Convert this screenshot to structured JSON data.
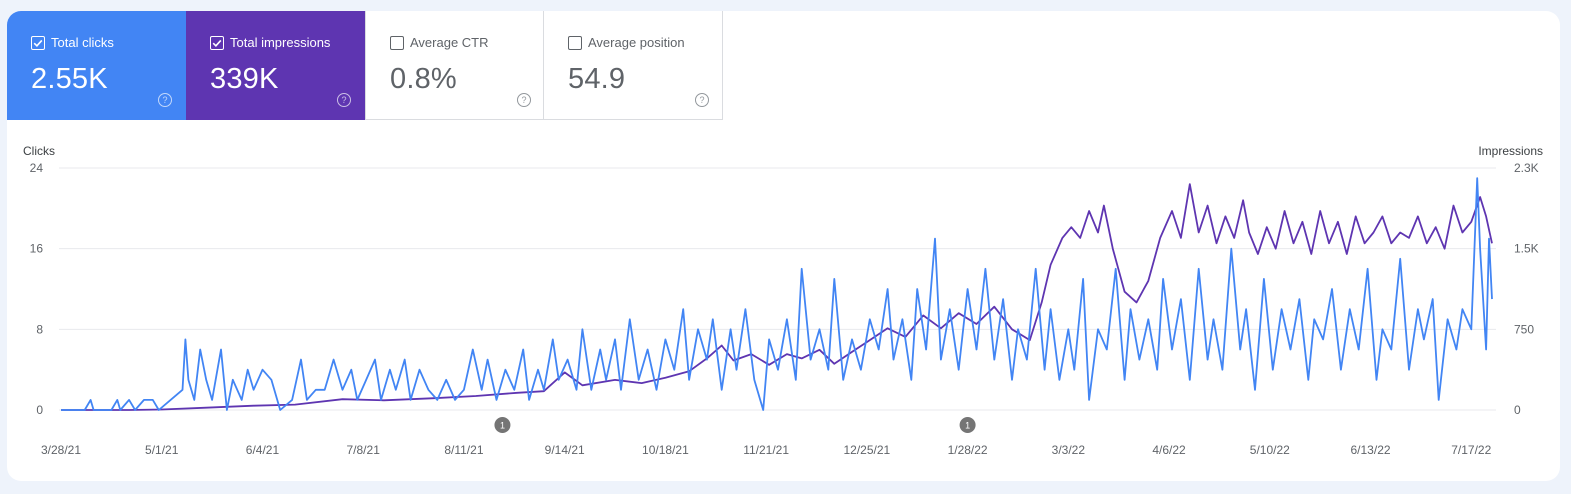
{
  "metrics": {
    "clicks": {
      "label": "Total clicks",
      "value": "2.55K",
      "checked": true,
      "help_icon": "?"
    },
    "impressions": {
      "label": "Total impressions",
      "value": "339K",
      "checked": true,
      "help_icon": "?"
    },
    "ctr": {
      "label": "Average CTR",
      "value": "0.8%",
      "checked": false,
      "help_icon": "?"
    },
    "position": {
      "label": "Average position",
      "value": "54.9",
      "checked": false,
      "help_icon": "?"
    }
  },
  "colors": {
    "clicks": "#4285f4",
    "impressions": "#5e35b1",
    "grid": "#e8eaed"
  },
  "chart_data": {
    "type": "line",
    "x_start": "2021-03-28",
    "x_end": "2022-07-24",
    "left_axis": {
      "label": "Clicks",
      "ticks": [
        "0",
        "8",
        "16",
        "24"
      ],
      "range": [
        0,
        24
      ]
    },
    "right_axis": {
      "label": "Impressions",
      "ticks": [
        "0",
        "750",
        "1.5K",
        "2.3K"
      ],
      "range": [
        0,
        2250
      ]
    },
    "x_tick_labels": [
      "3/28/21",
      "5/1/21",
      "6/4/21",
      "7/8/21",
      "8/11/21",
      "9/14/21",
      "10/18/21",
      "11/21/21",
      "12/25/21",
      "1/28/22",
      "3/3/22",
      "4/6/22",
      "5/10/22",
      "6/13/22",
      "7/17/22"
    ],
    "annotations": [
      {
        "date": "2021-08-24",
        "label": "1"
      },
      {
        "date": "2022-01-28",
        "label": "1"
      }
    ],
    "grid": true,
    "series": [
      {
        "name": "Clicks",
        "axis": "left",
        "points": [
          [
            "2021-03-28",
            0
          ],
          [
            "2021-04-05",
            0
          ],
          [
            "2021-04-07",
            1
          ],
          [
            "2021-04-08",
            0
          ],
          [
            "2021-04-14",
            0
          ],
          [
            "2021-04-16",
            1
          ],
          [
            "2021-04-17",
            0
          ],
          [
            "2021-04-20",
            1
          ],
          [
            "2021-04-22",
            0
          ],
          [
            "2021-04-25",
            1
          ],
          [
            "2021-04-28",
            1
          ],
          [
            "2021-04-30",
            0
          ],
          [
            "2021-05-04",
            1
          ],
          [
            "2021-05-08",
            2
          ],
          [
            "2021-05-09",
            7
          ],
          [
            "2021-05-10",
            3
          ],
          [
            "2021-05-12",
            1
          ],
          [
            "2021-05-14",
            6
          ],
          [
            "2021-05-16",
            3
          ],
          [
            "2021-05-18",
            1
          ],
          [
            "2021-05-21",
            6
          ],
          [
            "2021-05-23",
            0
          ],
          [
            "2021-05-25",
            3
          ],
          [
            "2021-05-28",
            1
          ],
          [
            "2021-05-30",
            4
          ],
          [
            "2021-06-01",
            2
          ],
          [
            "2021-06-04",
            4
          ],
          [
            "2021-06-07",
            3
          ],
          [
            "2021-06-10",
            0
          ],
          [
            "2021-06-14",
            1
          ],
          [
            "2021-06-17",
            5
          ],
          [
            "2021-06-19",
            1
          ],
          [
            "2021-06-22",
            2
          ],
          [
            "2021-06-25",
            2
          ],
          [
            "2021-06-28",
            5
          ],
          [
            "2021-07-01",
            2
          ],
          [
            "2021-07-04",
            4
          ],
          [
            "2021-07-06",
            1
          ],
          [
            "2021-07-09",
            3
          ],
          [
            "2021-07-12",
            5
          ],
          [
            "2021-07-14",
            1
          ],
          [
            "2021-07-17",
            4
          ],
          [
            "2021-07-19",
            2
          ],
          [
            "2021-07-22",
            5
          ],
          [
            "2021-07-24",
            1
          ],
          [
            "2021-07-27",
            4
          ],
          [
            "2021-07-30",
            2
          ],
          [
            "2021-08-02",
            1
          ],
          [
            "2021-08-05",
            3
          ],
          [
            "2021-08-08",
            1
          ],
          [
            "2021-08-11",
            2
          ],
          [
            "2021-08-14",
            6
          ],
          [
            "2021-08-17",
            2
          ],
          [
            "2021-08-19",
            5
          ],
          [
            "2021-08-22",
            1
          ],
          [
            "2021-08-25",
            4
          ],
          [
            "2021-08-28",
            2
          ],
          [
            "2021-08-31",
            6
          ],
          [
            "2021-09-02",
            1
          ],
          [
            "2021-09-05",
            4
          ],
          [
            "2021-09-07",
            2
          ],
          [
            "2021-09-10",
            7
          ],
          [
            "2021-09-12",
            3
          ],
          [
            "2021-09-15",
            5
          ],
          [
            "2021-09-18",
            2
          ],
          [
            "2021-09-20",
            8
          ],
          [
            "2021-09-23",
            2
          ],
          [
            "2021-09-26",
            6
          ],
          [
            "2021-09-28",
            3
          ],
          [
            "2021-10-01",
            7
          ],
          [
            "2021-10-03",
            2
          ],
          [
            "2021-10-06",
            9
          ],
          [
            "2021-10-09",
            3
          ],
          [
            "2021-10-12",
            6
          ],
          [
            "2021-10-15",
            2
          ],
          [
            "2021-10-18",
            7
          ],
          [
            "2021-10-21",
            4
          ],
          [
            "2021-10-24",
            10
          ],
          [
            "2021-10-26",
            3
          ],
          [
            "2021-10-29",
            8
          ],
          [
            "2021-11-01",
            5
          ],
          [
            "2021-11-03",
            9
          ],
          [
            "2021-11-06",
            2
          ],
          [
            "2021-11-09",
            8
          ],
          [
            "2021-11-11",
            4
          ],
          [
            "2021-11-14",
            10
          ],
          [
            "2021-11-17",
            3
          ],
          [
            "2021-11-20",
            0
          ],
          [
            "2021-11-22",
            7
          ],
          [
            "2021-11-25",
            4
          ],
          [
            "2021-11-28",
            9
          ],
          [
            "2021-12-01",
            3
          ],
          [
            "2021-12-03",
            14
          ],
          [
            "2021-12-06",
            5
          ],
          [
            "2021-12-09",
            8
          ],
          [
            "2021-12-12",
            4
          ],
          [
            "2021-12-14",
            13
          ],
          [
            "2021-12-17",
            3
          ],
          [
            "2021-12-20",
            7
          ],
          [
            "2021-12-23",
            4
          ],
          [
            "2021-12-26",
            9
          ],
          [
            "2021-12-29",
            6
          ],
          [
            "2022-01-01",
            12
          ],
          [
            "2022-01-03",
            5
          ],
          [
            "2022-01-06",
            9
          ],
          [
            "2022-01-09",
            3
          ],
          [
            "2022-01-11",
            12
          ],
          [
            "2022-01-14",
            6
          ],
          [
            "2022-01-17",
            17
          ],
          [
            "2022-01-19",
            5
          ],
          [
            "2022-01-22",
            10
          ],
          [
            "2022-01-25",
            4
          ],
          [
            "2022-01-28",
            12
          ],
          [
            "2022-01-31",
            6
          ],
          [
            "2022-02-03",
            14
          ],
          [
            "2022-02-06",
            5
          ],
          [
            "2022-02-09",
            11
          ],
          [
            "2022-02-12",
            3
          ],
          [
            "2022-02-14",
            8
          ],
          [
            "2022-02-17",
            5
          ],
          [
            "2022-02-20",
            14
          ],
          [
            "2022-02-23",
            4
          ],
          [
            "2022-02-25",
            10
          ],
          [
            "2022-02-28",
            3
          ],
          [
            "2022-03-03",
            8
          ],
          [
            "2022-03-05",
            4
          ],
          [
            "2022-03-08",
            13
          ],
          [
            "2022-03-10",
            1
          ],
          [
            "2022-03-13",
            8
          ],
          [
            "2022-03-16",
            6
          ],
          [
            "2022-03-19",
            14
          ],
          [
            "2022-03-22",
            3
          ],
          [
            "2022-03-24",
            10
          ],
          [
            "2022-03-27",
            5
          ],
          [
            "2022-03-30",
            9
          ],
          [
            "2022-04-02",
            4
          ],
          [
            "2022-04-04",
            13
          ],
          [
            "2022-04-07",
            6
          ],
          [
            "2022-04-10",
            11
          ],
          [
            "2022-04-13",
            3
          ],
          [
            "2022-04-16",
            14
          ],
          [
            "2022-04-19",
            5
          ],
          [
            "2022-04-21",
            9
          ],
          [
            "2022-04-24",
            4
          ],
          [
            "2022-04-27",
            16
          ],
          [
            "2022-04-30",
            6
          ],
          [
            "2022-05-02",
            10
          ],
          [
            "2022-05-05",
            2
          ],
          [
            "2022-05-08",
            13
          ],
          [
            "2022-05-11",
            4
          ],
          [
            "2022-05-14",
            10
          ],
          [
            "2022-05-17",
            6
          ],
          [
            "2022-05-20",
            11
          ],
          [
            "2022-05-23",
            3
          ],
          [
            "2022-05-25",
            9
          ],
          [
            "2022-05-28",
            7
          ],
          [
            "2022-05-31",
            12
          ],
          [
            "2022-06-03",
            4
          ],
          [
            "2022-06-06",
            10
          ],
          [
            "2022-06-09",
            6
          ],
          [
            "2022-06-12",
            14
          ],
          [
            "2022-06-15",
            3
          ],
          [
            "2022-06-17",
            8
          ],
          [
            "2022-06-20",
            6
          ],
          [
            "2022-06-23",
            15
          ],
          [
            "2022-06-26",
            4
          ],
          [
            "2022-06-29",
            10
          ],
          [
            "2022-07-01",
            7
          ],
          [
            "2022-07-04",
            11
          ],
          [
            "2022-07-06",
            1
          ],
          [
            "2022-07-09",
            9
          ],
          [
            "2022-07-12",
            6
          ],
          [
            "2022-07-14",
            10
          ],
          [
            "2022-07-17",
            8
          ],
          [
            "2022-07-19",
            23
          ],
          [
            "2022-07-20",
            16
          ],
          [
            "2022-07-22",
            6
          ],
          [
            "2022-07-23",
            17
          ],
          [
            "2022-07-24",
            11
          ]
        ]
      },
      {
        "name": "Impressions",
        "axis": "right",
        "points": [
          [
            "2021-03-28",
            0
          ],
          [
            "2021-04-20",
            0
          ],
          [
            "2021-05-01",
            5
          ],
          [
            "2021-05-15",
            20
          ],
          [
            "2021-06-01",
            40
          ],
          [
            "2021-06-15",
            50
          ],
          [
            "2021-07-01",
            100
          ],
          [
            "2021-07-15",
            90
          ],
          [
            "2021-08-01",
            110
          ],
          [
            "2021-08-15",
            130
          ],
          [
            "2021-08-29",
            160
          ],
          [
            "2021-09-07",
            175
          ],
          [
            "2021-09-14",
            350
          ],
          [
            "2021-09-20",
            230
          ],
          [
            "2021-10-01",
            280
          ],
          [
            "2021-10-10",
            250
          ],
          [
            "2021-10-18",
            300
          ],
          [
            "2021-10-26",
            360
          ],
          [
            "2021-11-01",
            480
          ],
          [
            "2021-11-06",
            600
          ],
          [
            "2021-11-10",
            460
          ],
          [
            "2021-11-16",
            520
          ],
          [
            "2021-11-22",
            420
          ],
          [
            "2021-11-28",
            520
          ],
          [
            "2021-12-03",
            480
          ],
          [
            "2021-12-09",
            560
          ],
          [
            "2021-12-14",
            430
          ],
          [
            "2021-12-20",
            540
          ],
          [
            "2021-12-26",
            650
          ],
          [
            "2022-01-01",
            760
          ],
          [
            "2022-01-07",
            680
          ],
          [
            "2022-01-13",
            880
          ],
          [
            "2022-01-19",
            760
          ],
          [
            "2022-01-25",
            900
          ],
          [
            "2022-01-31",
            800
          ],
          [
            "2022-02-06",
            960
          ],
          [
            "2022-02-12",
            750
          ],
          [
            "2022-02-18",
            650
          ],
          [
            "2022-02-22",
            1000
          ],
          [
            "2022-02-25",
            1350
          ],
          [
            "2022-03-01",
            1600
          ],
          [
            "2022-03-04",
            1700
          ],
          [
            "2022-03-07",
            1600
          ],
          [
            "2022-03-10",
            1850
          ],
          [
            "2022-03-13",
            1650
          ],
          [
            "2022-03-15",
            1900
          ],
          [
            "2022-03-18",
            1500
          ],
          [
            "2022-03-22",
            1100
          ],
          [
            "2022-03-26",
            1000
          ],
          [
            "2022-03-30",
            1200
          ],
          [
            "2022-04-03",
            1600
          ],
          [
            "2022-04-07",
            1850
          ],
          [
            "2022-04-10",
            1600
          ],
          [
            "2022-04-13",
            2100
          ],
          [
            "2022-04-16",
            1650
          ],
          [
            "2022-04-19",
            1900
          ],
          [
            "2022-04-22",
            1550
          ],
          [
            "2022-04-25",
            1800
          ],
          [
            "2022-04-28",
            1600
          ],
          [
            "2022-05-01",
            1950
          ],
          [
            "2022-05-03",
            1650
          ],
          [
            "2022-05-06",
            1450
          ],
          [
            "2022-05-09",
            1700
          ],
          [
            "2022-05-12",
            1500
          ],
          [
            "2022-05-15",
            1850
          ],
          [
            "2022-05-18",
            1550
          ],
          [
            "2022-05-21",
            1750
          ],
          [
            "2022-05-24",
            1450
          ],
          [
            "2022-05-27",
            1850
          ],
          [
            "2022-05-30",
            1550
          ],
          [
            "2022-06-02",
            1750
          ],
          [
            "2022-06-05",
            1450
          ],
          [
            "2022-06-08",
            1800
          ],
          [
            "2022-06-11",
            1550
          ],
          [
            "2022-06-14",
            1650
          ],
          [
            "2022-06-17",
            1800
          ],
          [
            "2022-06-20",
            1550
          ],
          [
            "2022-06-23",
            1650
          ],
          [
            "2022-06-26",
            1600
          ],
          [
            "2022-06-29",
            1800
          ],
          [
            "2022-07-02",
            1550
          ],
          [
            "2022-07-05",
            1700
          ],
          [
            "2022-07-08",
            1500
          ],
          [
            "2022-07-11",
            1900
          ],
          [
            "2022-07-14",
            1650
          ],
          [
            "2022-07-17",
            1750
          ],
          [
            "2022-07-20",
            1980
          ],
          [
            "2022-07-22",
            1800
          ],
          [
            "2022-07-24",
            1550
          ]
        ]
      }
    ]
  }
}
